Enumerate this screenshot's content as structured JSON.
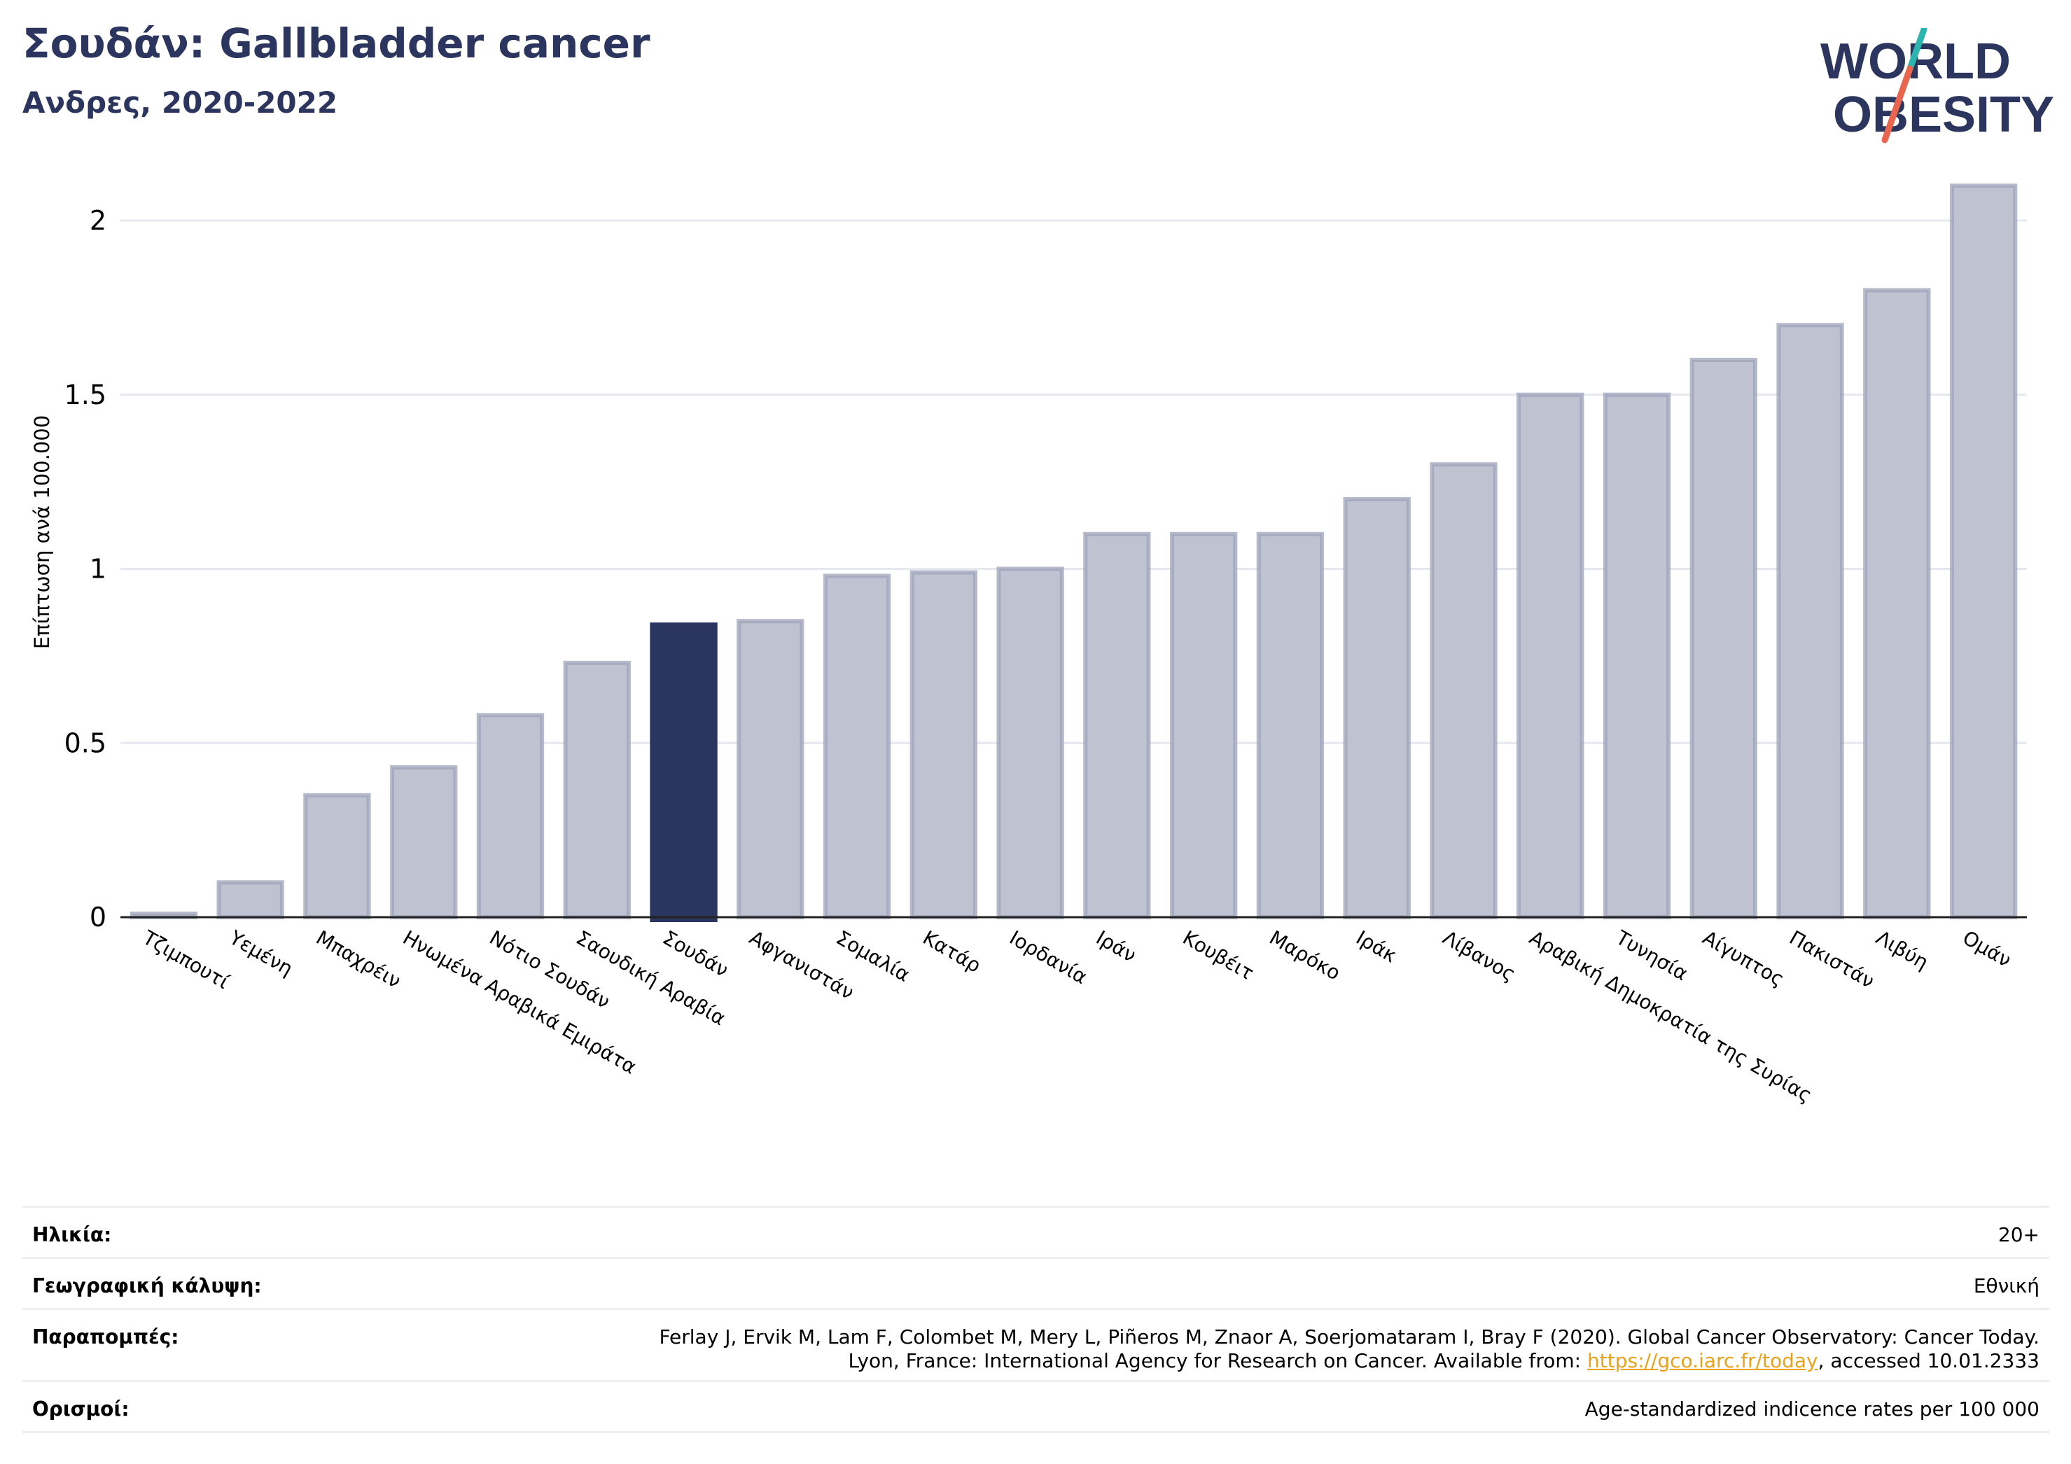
{
  "header": {
    "title": "Σουδάν: Gallbladder cancer",
    "subtitle": "Ανδρες, 2020-2022"
  },
  "logo": {
    "line1": "WORLD",
    "line2": "OBESITY"
  },
  "colors": {
    "highlight": "#2b3660",
    "bar": "#bfc2d0",
    "bar_edge": "#9ea3ba",
    "text_dark": "#2b355e",
    "link": "#e8a31b"
  },
  "chart_data": {
    "type": "bar",
    "ylabel": "Επίπτωση ανά 100.000",
    "ylim": [
      0,
      2.2
    ],
    "yticks": [
      0,
      0.5,
      1,
      1.5,
      2
    ],
    "ytick_labels": [
      "0",
      "0.5",
      "1",
      "1.5",
      "2"
    ],
    "grid": true,
    "highlight": "Σουδάν",
    "categories": [
      "Τζιμπουτί",
      "Υεμένη",
      "Μπαχρέιν",
      "Ηνωμένα Αραβικά Εμιράτα",
      "Νότιο Σουδάν",
      "Σαουδική Αραβία",
      "Σουδάν",
      "Αφγανιστάν",
      "Σομαλία",
      "Κατάρ",
      "Ιορδανία",
      "Ιράν",
      "Κουβέιτ",
      "Μαρόκο",
      "Ιράκ",
      "Λίβανος",
      "Αραβική Δημοκρατία της Συρίας",
      "Τυνησία",
      "Αίγυπτος",
      "Πακιστάν",
      "Λιβύη",
      "Ομάν"
    ],
    "values": [
      0.01,
      0.1,
      0.35,
      0.43,
      0.58,
      0.73,
      0.84,
      0.85,
      0.98,
      0.99,
      1.0,
      1.1,
      1.1,
      1.1,
      1.2,
      1.3,
      1.5,
      1.5,
      1.6,
      1.7,
      1.8,
      2.1
    ]
  },
  "info": {
    "age_label": "Ηλικία:",
    "age_value": "20+",
    "coverage_label": "Γεωγραφική κάλυψη:",
    "coverage_value": "Εθνική",
    "refs_label": "Παραπομπές:",
    "refs_line1": "Ferlay J, Ervik M, Lam F, Colombet M, Mery L, Piñeros M, Znaor A, Soerjomataram I, Bray F (2020). Global Cancer Observatory: Cancer Today.",
    "refs_line2_pre": "Lyon, France: International Agency for Research on Cancer. Available from: ",
    "refs_link": "https://gco.iarc.fr/today",
    "refs_line2_post": ", accessed 10.01.2333",
    "defs_label": "Ορισμοί:",
    "defs_value": "Age-standardized indicence rates per 100 000"
  }
}
